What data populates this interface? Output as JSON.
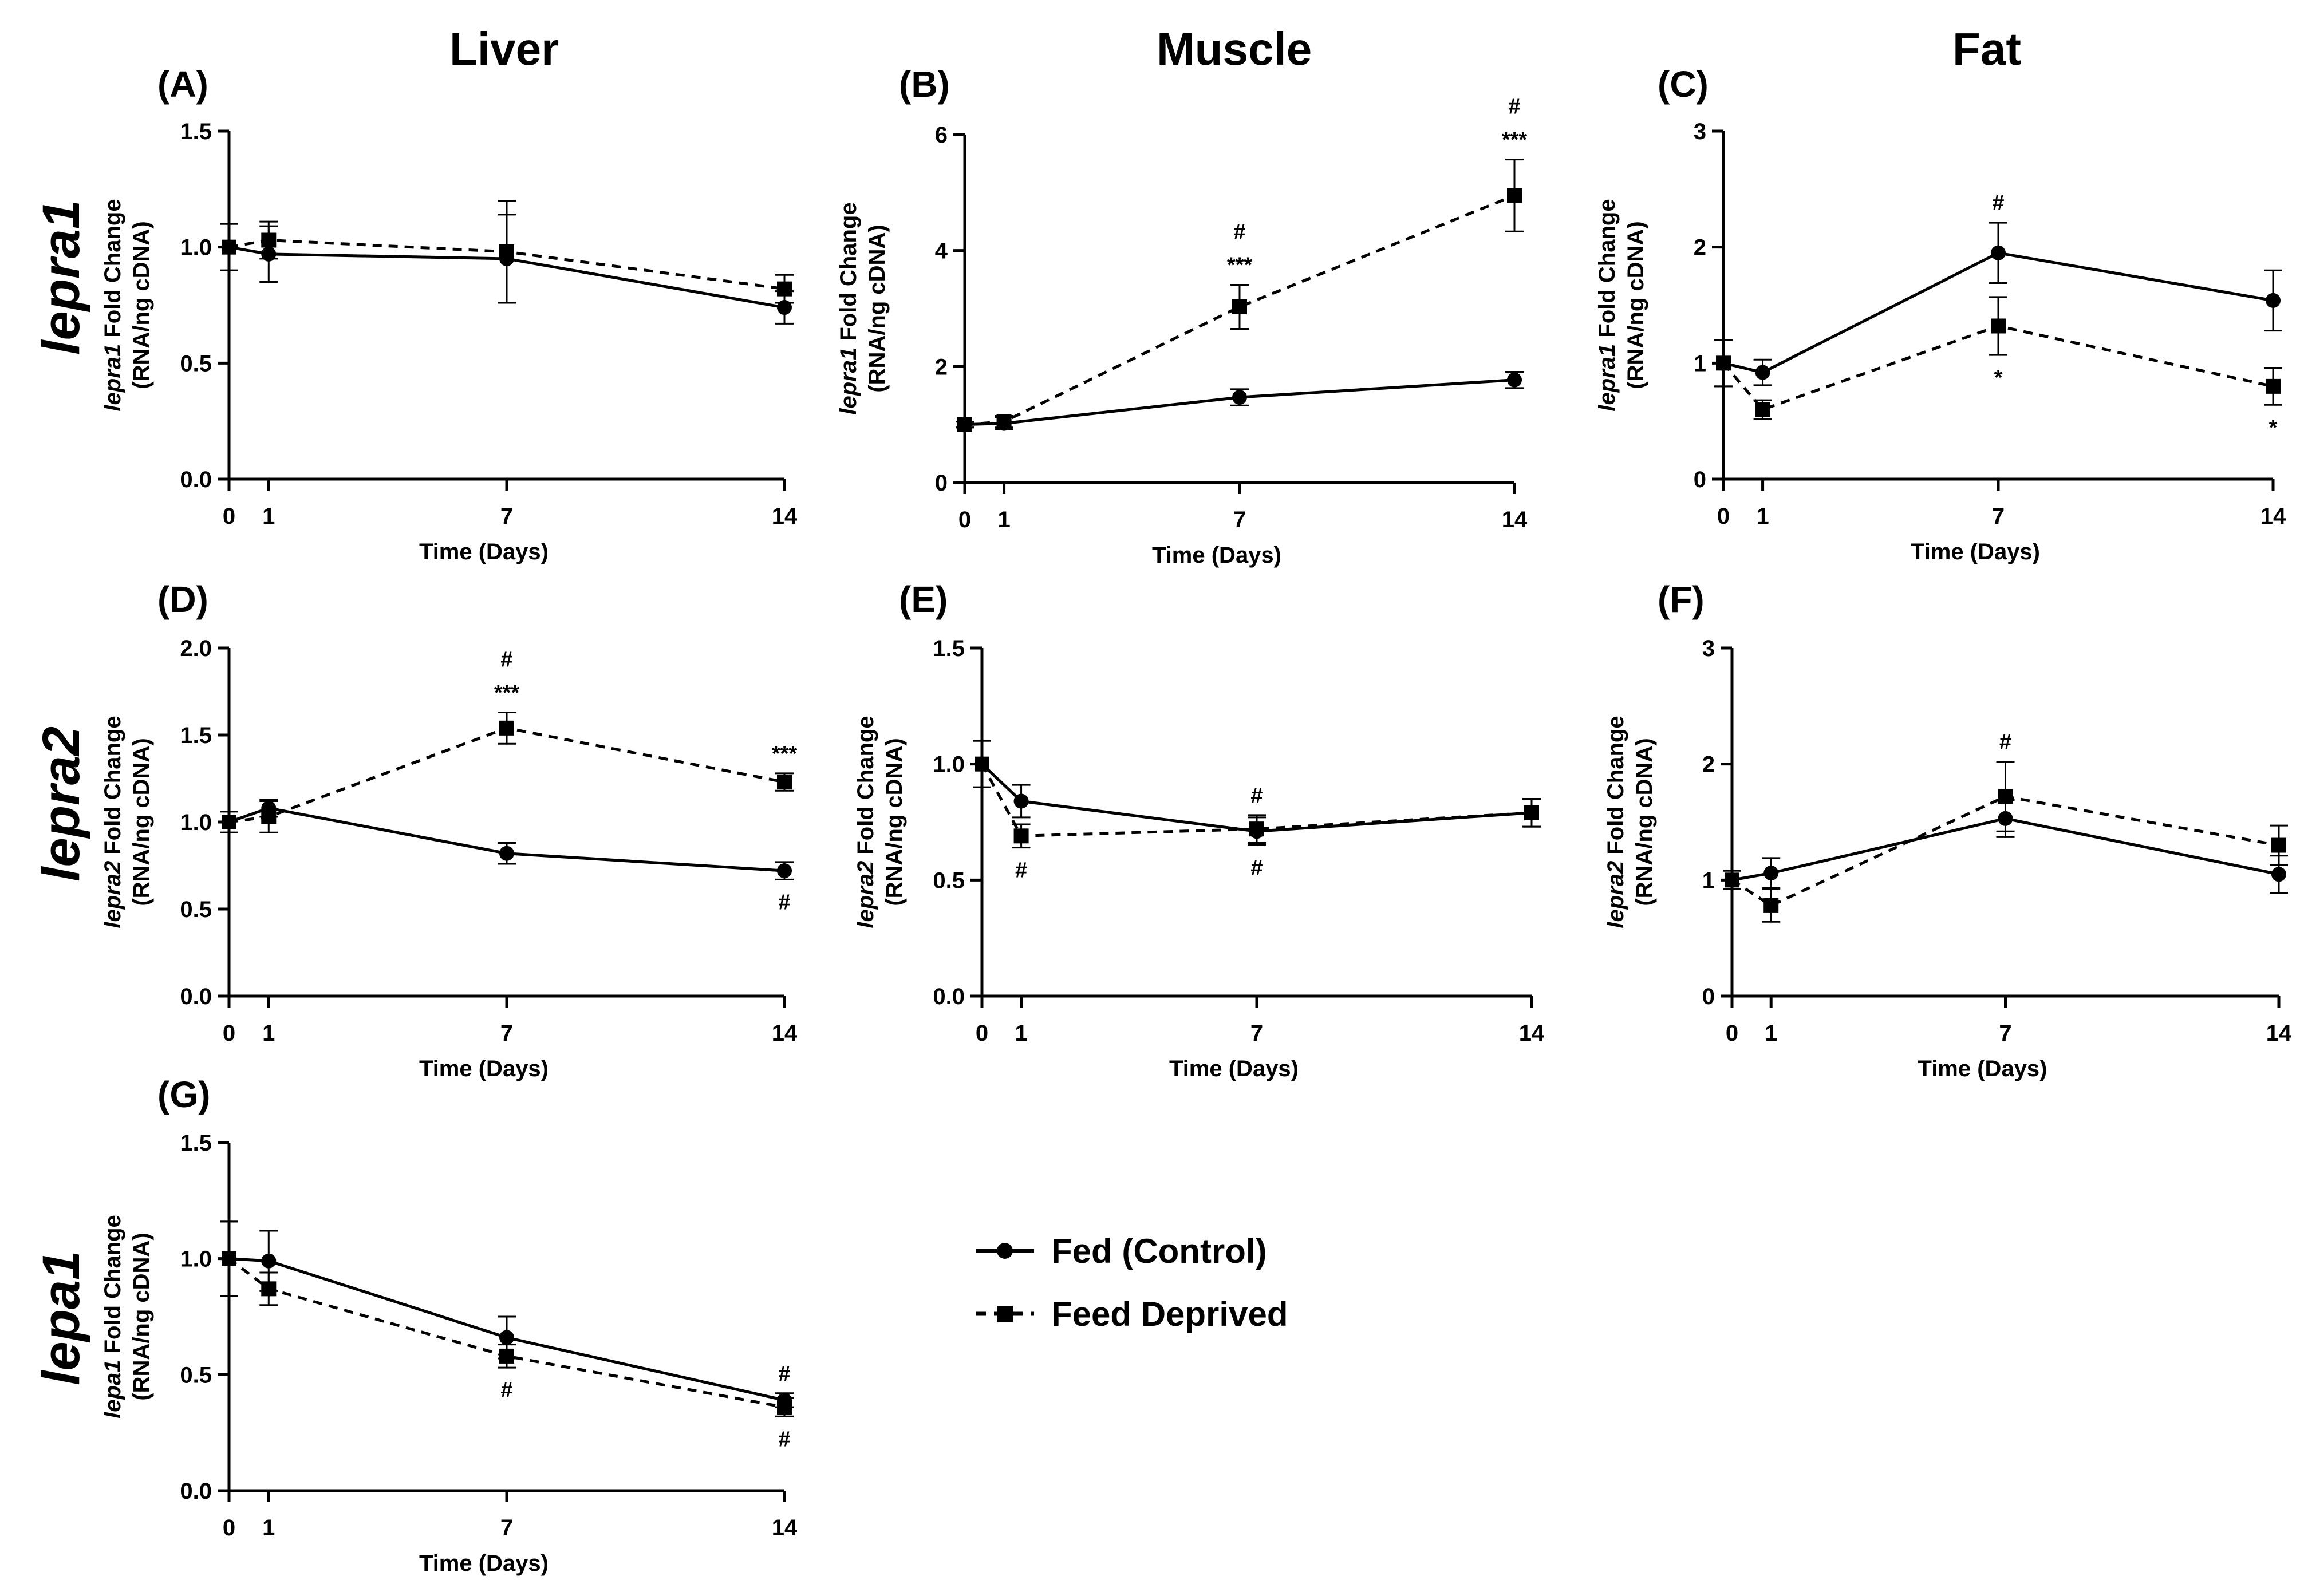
{
  "headers": {
    "liver": "Liver",
    "muscle": "Muscle",
    "fat": "Fat"
  },
  "row_labels": {
    "r1": "lepra1",
    "r2": "lepra2",
    "r3": "lepa1"
  },
  "legend": {
    "fed": "Fed (Control)",
    "fd": "Feed Deprived"
  },
  "colors": {
    "ink": "#000000"
  },
  "chart_data": [
    {
      "id": "A",
      "panel_label": "(A)",
      "type": "line",
      "gene": "lepra1",
      "ylabel_rest": " Fold Change",
      "ylabel2": "(RNA/ng cDNA)",
      "xlabel": "Time (Days)",
      "x": [
        0,
        1,
        7,
        14
      ],
      "x_ticks": [
        "0",
        "1",
        "7",
        "14"
      ],
      "ylim": [
        0,
        1.5
      ],
      "y_ticks": [
        "0.0",
        "0.5",
        "1.0",
        "1.5"
      ],
      "series": [
        {
          "name": "Fed (Control)",
          "values": [
            1.0,
            0.97,
            0.95,
            0.74
          ],
          "errors": [
            0.1,
            0.12,
            0.19,
            0.07
          ]
        },
        {
          "name": "Feed Deprived",
          "values": [
            1.0,
            1.03,
            0.98,
            0.82
          ],
          "errors": [
            0.1,
            0.08,
            0.22,
            0.06
          ]
        }
      ],
      "annotations": []
    },
    {
      "id": "B",
      "panel_label": "(B)",
      "type": "line",
      "gene": "lepra1",
      "ylabel_rest": " Fold Change",
      "ylabel2": "(RNA/ng cDNA)",
      "xlabel": "Time (Days)",
      "x": [
        0,
        1,
        7,
        14
      ],
      "x_ticks": [
        "0",
        "1",
        "7",
        "14"
      ],
      "ylim": [
        0,
        6
      ],
      "y_ticks": [
        "0",
        "2",
        "4",
        "6"
      ],
      "series": [
        {
          "name": "Fed (Control)",
          "values": [
            1.0,
            1.02,
            1.47,
            1.77
          ],
          "errors": [
            0.05,
            0.1,
            0.14,
            0.14
          ]
        },
        {
          "name": "Feed Deprived",
          "values": [
            1.0,
            1.05,
            3.03,
            4.95
          ],
          "errors": [
            0.05,
            0.1,
            0.38,
            0.62
          ]
        }
      ],
      "annotations": [
        {
          "series": 1,
          "point": 2,
          "where": "above",
          "lines": [
            "#",
            "***"
          ]
        },
        {
          "series": 1,
          "point": 3,
          "where": "above",
          "lines": [
            "#",
            "***"
          ]
        }
      ]
    },
    {
      "id": "C",
      "panel_label": "(C)",
      "type": "line",
      "gene": "lepra1",
      "ylabel_rest": " Fold Change",
      "ylabel2": "(RNA/ng cDNA)",
      "xlabel": "Time (Days)",
      "x": [
        0,
        1,
        7,
        14
      ],
      "x_ticks": [
        "0",
        "1",
        "7",
        "14"
      ],
      "ylim": [
        0,
        3
      ],
      "y_ticks": [
        "0",
        "1",
        "2",
        "3"
      ],
      "series": [
        {
          "name": "Fed (Control)",
          "values": [
            1.0,
            0.92,
            1.95,
            1.54
          ],
          "errors": [
            0.2,
            0.11,
            0.26,
            0.26
          ]
        },
        {
          "name": "Feed Deprived",
          "values": [
            1.0,
            0.6,
            1.32,
            0.8
          ],
          "errors": [
            0.2,
            0.08,
            0.25,
            0.16
          ]
        }
      ],
      "annotations": [
        {
          "series": 0,
          "point": 2,
          "where": "above",
          "lines": [
            "#"
          ]
        },
        {
          "series": 1,
          "point": 2,
          "where": "below",
          "lines": [
            "*"
          ]
        },
        {
          "series": 1,
          "point": 3,
          "where": "below",
          "lines": [
            "*"
          ]
        }
      ]
    },
    {
      "id": "D",
      "panel_label": "(D)",
      "type": "line",
      "gene": "lepra2",
      "ylabel_rest": " Fold Change",
      "ylabel2": "(RNA/ng cDNA)",
      "xlabel": "Time (Days)",
      "x": [
        0,
        1,
        7,
        14
      ],
      "x_ticks": [
        "0",
        "1",
        "7",
        "14"
      ],
      "ylim": [
        0,
        2
      ],
      "y_ticks": [
        "0.0",
        "0.5",
        "1.0",
        "1.5",
        "2.0"
      ],
      "series": [
        {
          "name": "Fed (Control)",
          "values": [
            1.0,
            1.08,
            0.82,
            0.72
          ],
          "errors": [
            0.06,
            0.05,
            0.06,
            0.05
          ]
        },
        {
          "name": "Feed Deprived",
          "values": [
            1.0,
            1.03,
            1.54,
            1.23
          ],
          "errors": [
            0.06,
            0.09,
            0.09,
            0.05
          ]
        }
      ],
      "annotations": [
        {
          "series": 1,
          "point": 2,
          "where": "above",
          "lines": [
            "#",
            "***"
          ]
        },
        {
          "series": 1,
          "point": 3,
          "where": "above",
          "lines": [
            "***"
          ]
        },
        {
          "series": 0,
          "point": 3,
          "where": "below",
          "lines": [
            "#"
          ]
        }
      ]
    },
    {
      "id": "E",
      "panel_label": "(E)",
      "type": "line",
      "gene": "lepra2",
      "ylabel_rest": " Fold Change",
      "ylabel2": "(RNA/ng cDNA)",
      "xlabel": "Time (Days)",
      "x": [
        0,
        1,
        7,
        14
      ],
      "x_ticks": [
        "0",
        "1",
        "7",
        "14"
      ],
      "ylim": [
        0,
        1.5
      ],
      "y_ticks": [
        "0.0",
        "0.5",
        "1.0",
        "1.5"
      ],
      "series": [
        {
          "name": "Fed (Control)",
          "values": [
            1.0,
            0.84,
            0.71,
            0.79
          ],
          "errors": [
            0.1,
            0.07,
            0.06,
            0.06
          ]
        },
        {
          "name": "Feed Deprived",
          "values": [
            1.0,
            0.69,
            0.72,
            0.79
          ],
          "errors": [
            0.1,
            0.05,
            0.06,
            0.06
          ]
        }
      ],
      "annotations": [
        {
          "series": 1,
          "point": 1,
          "where": "below",
          "lines": [
            "#"
          ]
        },
        {
          "series": 1,
          "point": 2,
          "where": "above",
          "lines": [
            "#"
          ]
        },
        {
          "series": 0,
          "point": 2,
          "where": "below",
          "lines": [
            "#"
          ]
        }
      ]
    },
    {
      "id": "F",
      "panel_label": "(F)",
      "type": "line",
      "gene": "lepra2",
      "ylabel_rest": " Fold Change",
      "ylabel2": "(RNA/ng cDNA)",
      "xlabel": "Time (Days)",
      "x": [
        0,
        1,
        7,
        14
      ],
      "x_ticks": [
        "0",
        "1",
        "7",
        "14"
      ],
      "ylim": [
        0,
        3
      ],
      "y_ticks": [
        "0",
        "1",
        "2",
        "3"
      ],
      "series": [
        {
          "name": "Fed (Control)",
          "values": [
            1.0,
            1.06,
            1.53,
            1.05
          ],
          "errors": [
            0.08,
            0.13,
            0.16,
            0.16
          ]
        },
        {
          "name": "Feed Deprived",
          "values": [
            1.0,
            0.78,
            1.72,
            1.3
          ],
          "errors": [
            0.08,
            0.14,
            0.3,
            0.17
          ]
        }
      ],
      "annotations": [
        {
          "series": 1,
          "point": 2,
          "where": "above",
          "lines": [
            "#"
          ]
        }
      ]
    },
    {
      "id": "G",
      "panel_label": "(G)",
      "type": "line",
      "gene": "lepa1",
      "ylabel_rest": " Fold Change",
      "ylabel2": "(RNA/ng cDNA)",
      "xlabel": "Time (Days)",
      "x": [
        0,
        1,
        7,
        14
      ],
      "x_ticks": [
        "0",
        "1",
        "7",
        "14"
      ],
      "ylim": [
        0,
        1.5
      ],
      "y_ticks": [
        "0.0",
        "0.5",
        "1.0",
        "1.5"
      ],
      "series": [
        {
          "name": "Fed (Control)",
          "values": [
            1.0,
            0.99,
            0.66,
            0.39
          ],
          "errors": [
            0.16,
            0.13,
            0.09,
            0.03
          ]
        },
        {
          "name": "Feed Deprived",
          "values": [
            1.0,
            0.87,
            0.58,
            0.36
          ],
          "errors": [
            0.16,
            0.07,
            0.05,
            0.04
          ]
        }
      ],
      "annotations": [
        {
          "series": 0,
          "point": 3,
          "where": "above",
          "lines": [
            "#"
          ]
        },
        {
          "series": 1,
          "point": 2,
          "where": "below",
          "lines": [
            "#"
          ]
        },
        {
          "series": 1,
          "point": 3,
          "where": "below",
          "lines": [
            "#"
          ]
        }
      ]
    }
  ]
}
